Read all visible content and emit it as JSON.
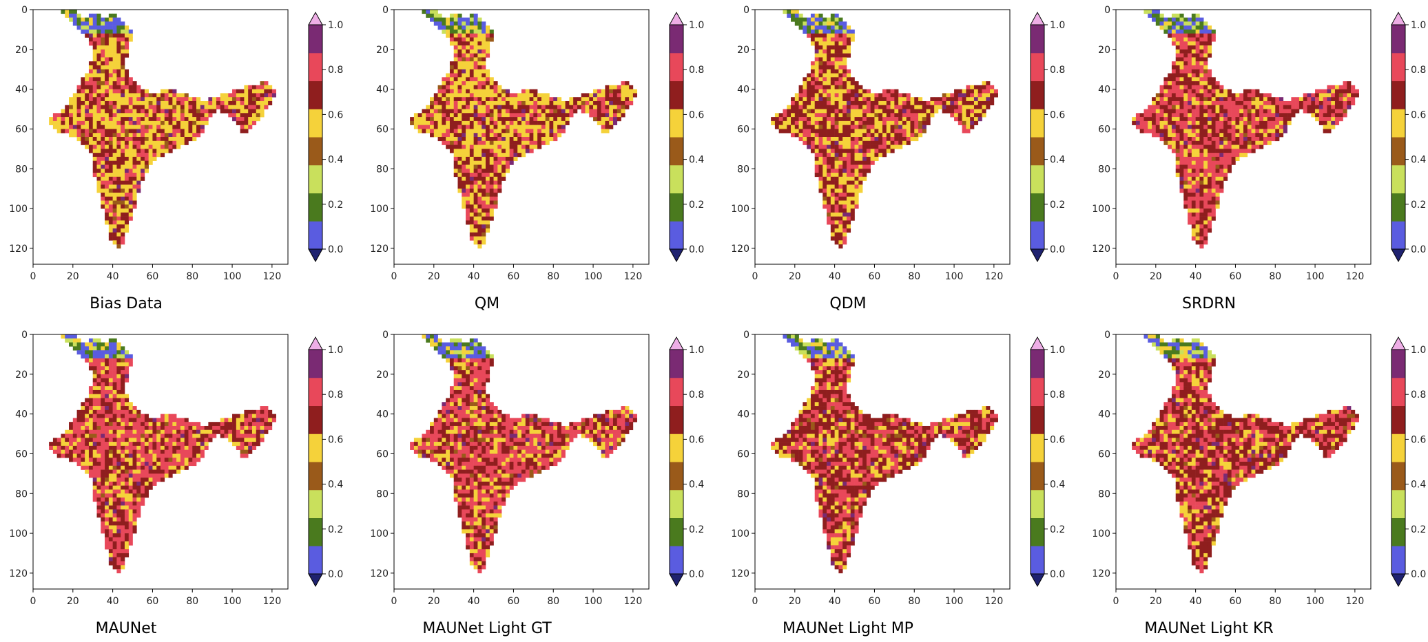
{
  "figure_title": "",
  "colors": {
    "class_colors": [
      "#1f2270",
      "#5a5ce0",
      "#4a7a1e",
      "#c9e05c",
      "#9a5a1a",
      "#f5d23a",
      "#8f1e1e",
      "#e8485a",
      "#7a2a73",
      "#eeaee6"
    ],
    "background": "#ffffff",
    "axis": "#000000"
  },
  "chart_data": [
    {
      "type": "heatmap",
      "title": "Bias Data",
      "x_ticks": [
        "0",
        "20",
        "40",
        "60",
        "80",
        "100",
        "120"
      ],
      "y_ticks": [
        "0",
        "20",
        "40",
        "60",
        "80",
        "100",
        "120"
      ],
      "colorbar": {
        "ticks": [
          "0.0",
          "0.2",
          "0.4",
          "0.6",
          "0.8",
          "1.0"
        ],
        "range": [
          0,
          1
        ],
        "bins": 10,
        "extend": "both"
      },
      "dominant_class": 5,
      "secondary_class": 6,
      "tertiary_class": 7
    },
    {
      "type": "heatmap",
      "title": "QM",
      "x_ticks": [
        "0",
        "20",
        "40",
        "60",
        "80",
        "100",
        "120"
      ],
      "y_ticks": [
        "0",
        "20",
        "40",
        "60",
        "80",
        "100",
        "120"
      ],
      "colorbar": {
        "ticks": [
          "0.0",
          "0.2",
          "0.4",
          "0.6",
          "0.8",
          "1.0"
        ],
        "range": [
          0,
          1
        ],
        "bins": 10,
        "extend": "both"
      },
      "dominant_class": 5,
      "secondary_class": 6,
      "tertiary_class": 7
    },
    {
      "type": "heatmap",
      "title": "QDM",
      "x_ticks": [
        "0",
        "20",
        "40",
        "60",
        "80",
        "100",
        "120"
      ],
      "y_ticks": [
        "0",
        "20",
        "40",
        "60",
        "80",
        "100",
        "120"
      ],
      "colorbar": {
        "ticks": [
          "0.0",
          "0.2",
          "0.4",
          "0.6",
          "0.8",
          "1.0"
        ],
        "range": [
          0,
          1
        ],
        "bins": 10,
        "extend": "both"
      },
      "dominant_class": 6,
      "secondary_class": 5,
      "tertiary_class": 7
    },
    {
      "type": "heatmap",
      "title": "SRDRN",
      "x_ticks": [
        "0",
        "20",
        "40",
        "60",
        "80",
        "100",
        "120"
      ],
      "y_ticks": [
        "0",
        "20",
        "40",
        "60",
        "80",
        "100",
        "120"
      ],
      "colorbar": {
        "ticks": [
          "0.0",
          "0.2",
          "0.4",
          "0.6",
          "0.8",
          "1.0"
        ],
        "range": [
          0,
          1
        ],
        "bins": 10,
        "extend": "both"
      },
      "dominant_class": 7,
      "secondary_class": 6,
      "tertiary_class": 5
    },
    {
      "type": "heatmap",
      "title": "MAUNet",
      "x_ticks": [
        "0",
        "20",
        "40",
        "60",
        "80",
        "100",
        "120"
      ],
      "y_ticks": [
        "0",
        "20",
        "40",
        "60",
        "80",
        "100",
        "120"
      ],
      "colorbar": {
        "ticks": [
          "0.0",
          "0.2",
          "0.4",
          "0.6",
          "0.8",
          "1.0"
        ],
        "range": [
          0,
          1
        ],
        "bins": 10,
        "extend": "both"
      },
      "dominant_class": 7,
      "secondary_class": 6,
      "tertiary_class": 5
    },
    {
      "type": "heatmap",
      "title": "MAUNet Light GT",
      "x_ticks": [
        "0",
        "20",
        "40",
        "60",
        "80",
        "100",
        "120"
      ],
      "y_ticks": [
        "0",
        "20",
        "40",
        "60",
        "80",
        "100",
        "120"
      ],
      "colorbar": {
        "ticks": [
          "0.0",
          "0.2",
          "0.4",
          "0.6",
          "0.8",
          "1.0"
        ],
        "range": [
          0,
          1
        ],
        "bins": 10,
        "extend": "both"
      },
      "dominant_class": 7,
      "secondary_class": 6,
      "tertiary_class": 5
    },
    {
      "type": "heatmap",
      "title": "MAUNet Light MP",
      "x_ticks": [
        "0",
        "20",
        "40",
        "60",
        "80",
        "100",
        "120"
      ],
      "y_ticks": [
        "0",
        "20",
        "40",
        "60",
        "80",
        "100",
        "120"
      ],
      "colorbar": {
        "ticks": [
          "0.0",
          "0.2",
          "0.4",
          "0.6",
          "0.8",
          "1.0"
        ],
        "range": [
          0,
          1
        ],
        "bins": 10,
        "extend": "both"
      },
      "dominant_class": 6,
      "secondary_class": 7,
      "tertiary_class": 5
    },
    {
      "type": "heatmap",
      "title": "MAUNet Light KR",
      "x_ticks": [
        "0",
        "20",
        "40",
        "60",
        "80",
        "100",
        "120"
      ],
      "y_ticks": [
        "0",
        "20",
        "40",
        "60",
        "80",
        "100",
        "120"
      ],
      "colorbar": {
        "ticks": [
          "0.0",
          "0.2",
          "0.4",
          "0.6",
          "0.8",
          "1.0"
        ],
        "range": [
          0,
          1
        ],
        "bins": 10,
        "extend": "both"
      },
      "dominant_class": 6,
      "secondary_class": 7,
      "tertiary_class": 5
    }
  ]
}
